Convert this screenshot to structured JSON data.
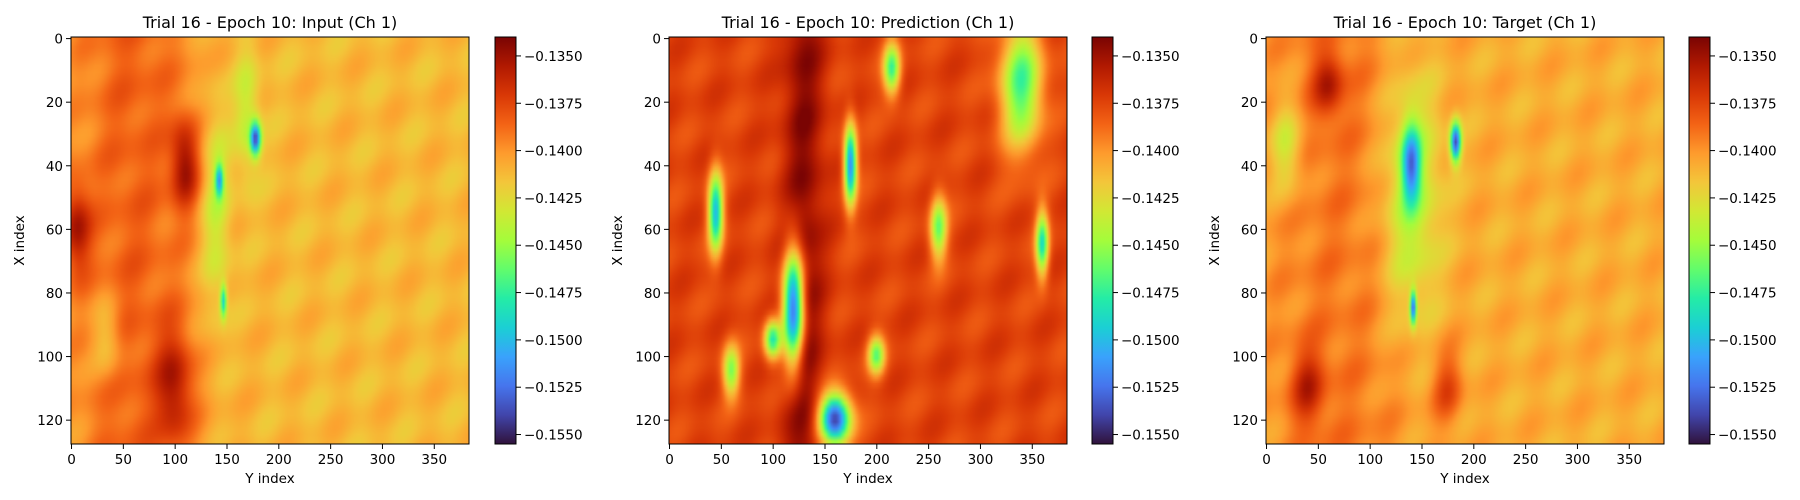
{
  "figure": {
    "colormap": "turbo",
    "colormap_stops": [
      "#30123b",
      "#4145ab",
      "#4675ed",
      "#39a2fc",
      "#1bcfd4",
      "#24eca6",
      "#61fc6c",
      "#a4fc3b",
      "#d1e834",
      "#f3c63a",
      "#fe9b2d",
      "#f36315",
      "#d93806",
      "#b11901",
      "#7a0403"
    ]
  },
  "chart_data": [
    {
      "type": "heatmap",
      "title": "Trial 16 - Epoch 10: Input (Ch 1)",
      "xlabel": "Y index",
      "ylabel": "X index",
      "x_ticks": [
        0,
        50,
        100,
        150,
        200,
        250,
        300,
        350
      ],
      "y_ticks": [
        0,
        20,
        40,
        60,
        80,
        100,
        120
      ],
      "xlim": [
        0,
        383
      ],
      "ylim": [
        127,
        0
      ],
      "grid": false,
      "colorbar": {
        "vmin": -0.1555,
        "vmax": -0.134,
        "ticks": [
          -0.135,
          -0.1375,
          -0.14,
          -0.1425,
          -0.145,
          -0.1475,
          -0.15,
          -0.1525,
          -0.155
        ],
        "tick_labels": [
          "−0.1350",
          "−0.1375",
          "−0.1400",
          "−0.1425",
          "−0.1450",
          "−0.1475",
          "−0.1500",
          "−0.1525",
          "−0.1550"
        ]
      },
      "field": {
        "background": -0.1412,
        "features": [
          {
            "kind": "band",
            "y_center": 60,
            "y_width": 130,
            "value": -0.1385
          },
          {
            "kind": "blob",
            "y": 5,
            "x": 60,
            "ry": 14,
            "rx": 14,
            "value": -0.1365
          },
          {
            "kind": "blob",
            "y": 110,
            "x": 40,
            "ry": 14,
            "rx": 14,
            "value": -0.1362
          },
          {
            "kind": "blob",
            "y": 100,
            "x": 110,
            "ry": 18,
            "rx": 18,
            "value": -0.137
          },
          {
            "kind": "blob",
            "y": 140,
            "x": 55,
            "ry": 14,
            "rx": 35,
            "value": -0.144
          },
          {
            "kind": "blob",
            "y": 35,
            "x": 95,
            "ry": 14,
            "rx": 12,
            "value": -0.1438
          },
          {
            "kind": "blob",
            "y": 170,
            "x": 25,
            "ry": 12,
            "rx": 20,
            "value": -0.144
          },
          {
            "kind": "blob",
            "y": 178,
            "x": 32,
            "ry": 5,
            "rx": 5,
            "value": -0.1525
          },
          {
            "kind": "blob",
            "y": 143,
            "x": 45,
            "ry": 4,
            "rx": 5,
            "value": -0.1495
          },
          {
            "kind": "blob",
            "y": 147,
            "x": 83,
            "ry": 3,
            "rx": 5,
            "value": -0.1488
          }
        ]
      }
    },
    {
      "type": "heatmap",
      "title": "Trial 16 - Epoch 10: Prediction (Ch 1)",
      "xlabel": "Y index",
      "ylabel": "X index",
      "x_ticks": [
        0,
        50,
        100,
        150,
        200,
        250,
        300,
        350
      ],
      "y_ticks": [
        0,
        20,
        40,
        60,
        80,
        100,
        120
      ],
      "xlim": [
        0,
        383
      ],
      "ylim": [
        127,
        0
      ],
      "grid": false,
      "colorbar": {
        "vmin": -0.1555,
        "vmax": -0.134,
        "ticks": [
          -0.135,
          -0.1375,
          -0.14,
          -0.1425,
          -0.145,
          -0.1475,
          -0.15,
          -0.1525,
          -0.155
        ],
        "tick_labels": [
          "−0.1350",
          "−0.1375",
          "−0.1400",
          "−0.1425",
          "−0.1450",
          "−0.1475",
          "−0.1500",
          "−0.1525",
          "−0.1550"
        ]
      },
      "field": {
        "background": -0.1375,
        "features": [
          {
            "kind": "band",
            "y_center": 130,
            "y_width": 40,
            "value": -0.1345
          },
          {
            "kind": "blob",
            "y": 45,
            "x": 55,
            "ry": 7,
            "rx": 12,
            "value": -0.15
          },
          {
            "kind": "blob",
            "y": 175,
            "x": 40,
            "ry": 6,
            "rx": 12,
            "value": -0.152
          },
          {
            "kind": "blob",
            "y": 340,
            "x": 15,
            "ry": 20,
            "rx": 20,
            "value": -0.147
          },
          {
            "kind": "blob",
            "y": 120,
            "x": 85,
            "ry": 10,
            "rx": 18,
            "value": -0.154
          },
          {
            "kind": "blob",
            "y": 160,
            "x": 120,
            "ry": 15,
            "rx": 8,
            "value": -0.1545
          },
          {
            "kind": "blob",
            "y": 260,
            "x": 60,
            "ry": 8,
            "rx": 10,
            "value": -0.146
          },
          {
            "kind": "blob",
            "y": 360,
            "x": 65,
            "ry": 6,
            "rx": 10,
            "value": -0.148
          },
          {
            "kind": "blob",
            "y": 215,
            "x": 10,
            "ry": 8,
            "rx": 8,
            "value": -0.147
          },
          {
            "kind": "blob",
            "y": 60,
            "x": 105,
            "ry": 8,
            "rx": 8,
            "value": -0.1455
          },
          {
            "kind": "blob",
            "y": 100,
            "x": 95,
            "ry": 8,
            "rx": 6,
            "value": -0.148
          },
          {
            "kind": "blob",
            "y": 200,
            "x": 100,
            "ry": 8,
            "rx": 6,
            "value": -0.146
          }
        ]
      }
    },
    {
      "type": "heatmap",
      "title": "Trial 16 - Epoch 10: Target (Ch 1)",
      "xlabel": "Y index",
      "ylabel": "X index",
      "x_ticks": [
        0,
        50,
        100,
        150,
        200,
        250,
        300,
        350
      ],
      "y_ticks": [
        0,
        20,
        40,
        60,
        80,
        100,
        120
      ],
      "xlim": [
        0,
        383
      ],
      "ylim": [
        127,
        0
      ],
      "grid": false,
      "colorbar": {
        "vmin": -0.1555,
        "vmax": -0.134,
        "ticks": [
          -0.135,
          -0.1375,
          -0.14,
          -0.1425,
          -0.145,
          -0.1475,
          -0.15,
          -0.1525,
          -0.155
        ],
        "tick_labels": [
          "−0.1350",
          "−0.1375",
          "−0.1400",
          "−0.1425",
          "−0.1450",
          "−0.1475",
          "−0.1500",
          "−0.1525",
          "−0.1550"
        ]
      },
      "field": {
        "background": -0.1408,
        "features": [
          {
            "kind": "band",
            "y_center": 70,
            "y_width": 150,
            "value": -0.1392
          },
          {
            "kind": "blob",
            "y": 140,
            "x": 50,
            "ry": 28,
            "rx": 40,
            "value": -0.1448
          },
          {
            "kind": "blob",
            "y": 140,
            "x": 40,
            "ry": 9,
            "rx": 12,
            "value": -0.15
          },
          {
            "kind": "blob",
            "y": 183,
            "x": 33,
            "ry": 5,
            "rx": 6,
            "value": -0.1535
          },
          {
            "kind": "blob",
            "y": 142,
            "x": 85,
            "ry": 3,
            "rx": 5,
            "value": -0.152
          },
          {
            "kind": "blob",
            "y": 20,
            "x": 35,
            "ry": 15,
            "rx": 15,
            "value": -0.144
          },
          {
            "kind": "blob",
            "y": 60,
            "x": 15,
            "ry": 15,
            "rx": 10,
            "value": -0.137
          },
          {
            "kind": "blob",
            "y": 40,
            "x": 110,
            "ry": 16,
            "rx": 12,
            "value": -0.1372
          },
          {
            "kind": "blob",
            "y": 175,
            "x": 110,
            "ry": 15,
            "rx": 12,
            "value": -0.1378
          }
        ]
      }
    }
  ]
}
